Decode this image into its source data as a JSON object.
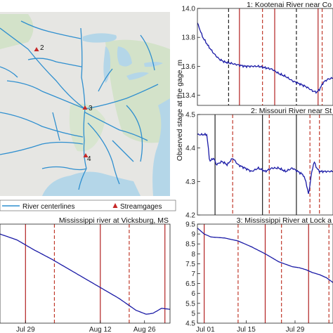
{
  "map": {
    "legend": {
      "river_label": "River centerlines",
      "gage_label": "Streamgages"
    },
    "gages": [
      {
        "label": "2"
      },
      {
        "label": "3"
      },
      {
        "label": "4"
      }
    ],
    "colors": {
      "land": "#e6e6e3",
      "green": "#d3e2c9",
      "water": "#b4d6e8",
      "river": "#2f8fcf",
      "gage": "#c62828"
    }
  },
  "ylabel": "Observed stage at the gage, m",
  "chart_data": [
    {
      "id": "p1",
      "type": "line",
      "title": "1: Kootenai River near Co",
      "yticks": [
        "14.0",
        "13.8",
        "13.6",
        "13.4"
      ],
      "ylim": [
        13.33,
        14.0
      ],
      "xlim": [
        0,
        1
      ],
      "solid_lines": [
        0.31,
        0.57,
        0.89
      ],
      "dashed_lines": [
        0.23,
        0.48,
        0.73,
        0.92
      ],
      "line_color": "#1a1aa6",
      "x": [
        0.0,
        0.04,
        0.08,
        0.12,
        0.16,
        0.2,
        0.25,
        0.3,
        0.35,
        0.4,
        0.45,
        0.5,
        0.55,
        0.6,
        0.65,
        0.7,
        0.75,
        0.8,
        0.85,
        0.88,
        0.9,
        0.93,
        0.96,
        1.0
      ],
      "y": [
        13.9,
        13.8,
        13.74,
        13.69,
        13.65,
        13.63,
        13.62,
        13.61,
        13.6,
        13.6,
        13.6,
        13.59,
        13.58,
        13.55,
        13.53,
        13.5,
        13.48,
        13.46,
        13.43,
        13.42,
        13.44,
        13.49,
        13.51,
        13.52
      ]
    },
    {
      "id": "p2",
      "type": "line",
      "title": "2: Missouri River near St",
      "yticks": [
        "4.5",
        "4.4",
        "4.3",
        "4.2"
      ],
      "ylim": [
        4.2,
        4.5
      ],
      "xlim": [
        0,
        1
      ],
      "solid_lines": [
        0.13,
        0.48,
        0.73
      ],
      "dashed_lines": [
        0.26,
        0.53,
        0.83,
        0.9
      ],
      "line_color": "#1a1aa6",
      "x": [
        0.0,
        0.04,
        0.07,
        0.09,
        0.12,
        0.14,
        0.18,
        0.22,
        0.26,
        0.3,
        0.35,
        0.4,
        0.45,
        0.5,
        0.55,
        0.6,
        0.65,
        0.7,
        0.74,
        0.78,
        0.8,
        0.82,
        0.84,
        0.86,
        0.88,
        0.9,
        0.94,
        0.97,
        1.0
      ],
      "y": [
        4.44,
        4.44,
        4.44,
        4.36,
        4.37,
        4.35,
        4.36,
        4.35,
        4.37,
        4.35,
        4.34,
        4.33,
        4.34,
        4.33,
        4.34,
        4.34,
        4.33,
        4.34,
        4.33,
        4.32,
        4.3,
        4.26,
        4.32,
        4.36,
        4.34,
        4.33,
        4.33,
        4.33,
        4.33
      ]
    },
    {
      "id": "p3",
      "type": "line",
      "title": "Mississippi river at Vicksburg, MS",
      "xticks": [
        "Jul 29",
        "Aug 12",
        "Aug 26"
      ],
      "xtick_pos": [
        0.15,
        0.59,
        0.85
      ],
      "ylim": [
        0,
        1
      ],
      "xlim": [
        0,
        1
      ],
      "solid_lines": [
        0.15,
        0.59,
        0.97
      ],
      "dashed_lines": [
        0.32,
        0.76
      ],
      "line_color": "#1a1aa6",
      "x": [
        0.0,
        0.1,
        0.2,
        0.3,
        0.4,
        0.5,
        0.6,
        0.7,
        0.8,
        0.86,
        0.9,
        0.95,
        1.0
      ],
      "y": [
        0.9,
        0.84,
        0.74,
        0.65,
        0.55,
        0.45,
        0.35,
        0.25,
        0.13,
        0.09,
        0.1,
        0.15,
        0.14
      ]
    },
    {
      "id": "p4",
      "type": "line",
      "title": "3: Mississippi River at Lock a",
      "yticks": [
        "9.5",
        "9",
        "8.5",
        "8",
        "7.5",
        "7",
        "6.5",
        "6",
        "5.5",
        "5",
        "4.5"
      ],
      "ylim": [
        4.5,
        9.5
      ],
      "xticks": [
        "Jul 01",
        "Jul 15",
        "Jul 29"
      ],
      "xtick_pos": [
        0.0,
        0.36,
        0.72
      ],
      "xlim": [
        0,
        1
      ],
      "solid_lines": [
        0.05,
        0.5,
        0.82
      ],
      "dashed_lines": [
        0.3,
        0.62,
        0.97
      ],
      "line_color": "#1a1aa6",
      "x": [
        0.0,
        0.05,
        0.1,
        0.2,
        0.3,
        0.4,
        0.5,
        0.6,
        0.7,
        0.75,
        0.8,
        0.85,
        0.9,
        0.95,
        1.0
      ],
      "y": [
        9.3,
        9.0,
        8.85,
        8.8,
        8.65,
        8.35,
        8.0,
        7.6,
        7.35,
        7.3,
        7.2,
        7.05,
        6.95,
        6.8,
        6.55
      ]
    }
  ]
}
